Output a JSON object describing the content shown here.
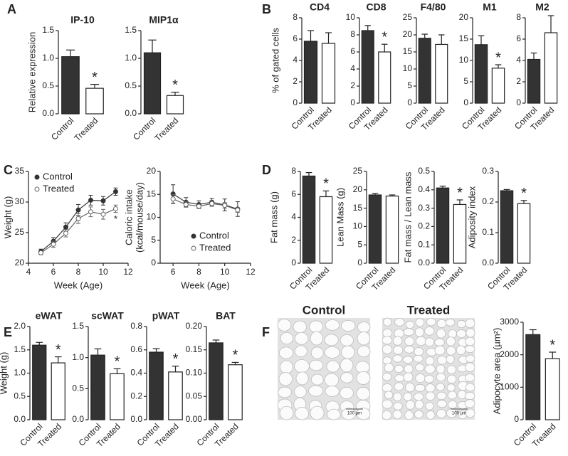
{
  "panel_labels": [
    "A",
    "B",
    "C",
    "D",
    "E",
    "F"
  ],
  "images": [
    {
      "title": "Control",
      "scale_bar": "100 µm"
    },
    {
      "title": "Treated",
      "scale_bar": "100 µm"
    }
  ],
  "chart_data": [
    {
      "type": "bar",
      "title": "IP-10",
      "ylabel": [
        "Relative expression"
      ],
      "categories": [
        "Control",
        "Treated"
      ],
      "values": [
        1.03,
        0.46
      ],
      "errors": [
        0.12,
        0.07
      ],
      "colors": [
        "#333333",
        "#ffffff"
      ],
      "ylim": [
        0,
        1.5
      ],
      "yticks": [
        {
          "value": 0,
          "label": "0.0"
        },
        0.5,
        {
          "value": 1,
          "label": "1.0"
        },
        1.5
      ],
      "annotation": "*"
    },
    {
      "type": "bar",
      "title": "MIP1α",
      "categories": [
        "Control",
        "Treated"
      ],
      "values": [
        1.1,
        0.33
      ],
      "errors": [
        0.23,
        0.06
      ],
      "colors": [
        "#333333",
        "#ffffff"
      ],
      "ylim": [
        0,
        1.5
      ],
      "yticks": [
        {
          "value": 0,
          "label": "0.0"
        },
        0.5,
        {
          "value": 1,
          "label": "1.0"
        },
        1.5
      ],
      "annotation": "*"
    },
    {
      "type": "bar",
      "title": "CD4",
      "ylabel": [
        "% of gated cells"
      ],
      "categories": [
        "Control",
        "Treated"
      ],
      "values": [
        5.8,
        5.6
      ],
      "errors": [
        1.0,
        1.0
      ],
      "colors": [
        "#333333",
        "#ffffff"
      ],
      "ylim": [
        0,
        8
      ],
      "yticks": [
        0,
        2,
        4,
        6,
        8
      ]
    },
    {
      "type": "bar",
      "title": "CD8",
      "categories": [
        "Control",
        "Treated"
      ],
      "values": [
        8.5,
        6.0
      ],
      "errors": [
        0.6,
        0.9
      ],
      "colors": [
        "#333333",
        "#ffffff"
      ],
      "ylim": [
        0,
        10
      ],
      "yticks": [
        0,
        2,
        4,
        6,
        8,
        10
      ],
      "annotation": "*"
    },
    {
      "type": "bar",
      "title": "F4/80",
      "categories": [
        "Control",
        "Treated"
      ],
      "values": [
        19,
        17.2
      ],
      "errors": [
        1.2,
        2.8
      ],
      "colors": [
        "#333333",
        "#ffffff"
      ],
      "ylim": [
        0,
        25
      ],
      "yticks": [
        0,
        5,
        10,
        15,
        20,
        25
      ]
    },
    {
      "type": "bar",
      "title": "M1",
      "categories": [
        "Control",
        "Treated"
      ],
      "values": [
        13.7,
        8.2
      ],
      "errors": [
        2.1,
        0.8
      ],
      "colors": [
        "#333333",
        "#ffffff"
      ],
      "ylim": [
        0,
        20
      ],
      "yticks": [
        0,
        5,
        10,
        15,
        20
      ],
      "annotation": "*"
    },
    {
      "type": "bar",
      "title": "M2",
      "categories": [
        "Control",
        "Treated"
      ],
      "values": [
        4.1,
        6.6
      ],
      "errors": [
        0.6,
        1.6
      ],
      "colors": [
        "#333333",
        "#ffffff"
      ],
      "ylim": [
        0,
        8
      ],
      "yticks": [
        0,
        2,
        4,
        6,
        8
      ]
    },
    {
      "type": "line",
      "ylabel": [
        "Weight (g)"
      ],
      "xlabel": "Week (Age)",
      "x": [
        5,
        6,
        7,
        8,
        9,
        10,
        11
      ],
      "xlim": [
        4,
        12
      ],
      "xticks": [
        4,
        6,
        8,
        10,
        12
      ],
      "ylim": [
        20,
        35
      ],
      "yticks": [
        20,
        25,
        30,
        35
      ],
      "legend": "upper left",
      "annotation": "*",
      "series": [
        {
          "name": "Control",
          "color": "#333333",
          "marker_fill": "#333333",
          "values": [
            21.9,
            23.6,
            25.9,
            28.7,
            30.3,
            30.2,
            31.7
          ],
          "errors": [
            0.4,
            0.6,
            0.7,
            0.9,
            0.8,
            0.7,
            0.6
          ]
        },
        {
          "name": "Treated",
          "color": "#666666",
          "marker_fill": "#ffffff",
          "values": [
            21.7,
            23.1,
            24.9,
            27.3,
            28.4,
            28.0,
            28.9
          ],
          "errors": [
            0.3,
            0.5,
            0.6,
            0.8,
            0.8,
            0.8,
            0.6
          ]
        }
      ]
    },
    {
      "type": "line",
      "ylabel": [
        "Caloric intake",
        "(kcal/mouse/day)"
      ],
      "xlabel": "Week (Age)",
      "x": [
        6,
        7,
        8,
        9,
        10,
        11
      ],
      "xlim": [
        5,
        12
      ],
      "xticks": [
        6,
        8,
        10,
        12
      ],
      "ylim": [
        0,
        20
      ],
      "yticks": [
        0,
        5,
        10,
        15,
        20
      ],
      "legend": "lower right",
      "series": [
        {
          "name": "Control",
          "color": "#333333",
          "marker_fill": "#333333",
          "values": [
            15.1,
            13.3,
            12.8,
            13.3,
            12.7,
            11.8
          ],
          "errors": [
            2.0,
            1.0,
            0.8,
            0.8,
            1.3,
            1.6
          ]
        },
        {
          "name": "Treated",
          "color": "#666666",
          "marker_fill": "#ffffff",
          "values": [
            14.0,
            12.8,
            12.4,
            13.0,
            12.6,
            11.6
          ],
          "errors": [
            1.0,
            0.6,
            0.5,
            0.6,
            0.6,
            0.5
          ]
        }
      ]
    },
    {
      "type": "bar",
      "ylabel": [
        "Fat mass (g)"
      ],
      "categories": [
        "Control",
        "Treated"
      ],
      "values": [
        7.6,
        5.8
      ],
      "errors": [
        0.3,
        0.5
      ],
      "colors": [
        "#333333",
        "#ffffff"
      ],
      "ylim": [
        0,
        8
      ],
      "yticks": [
        0,
        2,
        4,
        6,
        8
      ],
      "annotation": "*"
    },
    {
      "type": "bar",
      "ylabel": [
        "Lean Mass (g)"
      ],
      "categories": [
        "Control",
        "Treated"
      ],
      "values": [
        18.6,
        18.3
      ],
      "errors": [
        0.4,
        0.3
      ],
      "colors": [
        "#333333",
        "#ffffff"
      ],
      "ylim": [
        0,
        25
      ],
      "yticks": [
        0,
        5,
        10,
        15,
        20,
        25
      ]
    },
    {
      "type": "bar",
      "ylabel": [
        "Fat mass / Lean mass"
      ],
      "categories": [
        "Control",
        "Treated"
      ],
      "values": [
        0.41,
        0.32
      ],
      "errors": [
        0.01,
        0.025
      ],
      "colors": [
        "#333333",
        "#ffffff"
      ],
      "ylim": [
        0,
        0.5
      ],
      "yticks": [
        {
          "value": 0,
          "label": "0.0"
        },
        0.1,
        0.2,
        0.3,
        0.4,
        0.5
      ],
      "annotation": "*"
    },
    {
      "type": "bar",
      "ylabel": [
        "Adiposity index"
      ],
      "categories": [
        "Control",
        "Treated"
      ],
      "values": [
        0.237,
        0.195
      ],
      "errors": [
        0.004,
        0.01
      ],
      "colors": [
        "#333333",
        "#ffffff"
      ],
      "ylim": [
        0,
        0.3
      ],
      "yticks": [
        {
          "value": 0,
          "label": "0.0"
        },
        0.1,
        0.2,
        0.3
      ],
      "annotation": "*"
    },
    {
      "type": "bar",
      "title": "eWAT",
      "ylabel": [
        "Weight (g)"
      ],
      "categories": [
        "Control",
        "Treated"
      ],
      "values": [
        1.6,
        1.22
      ],
      "errors": [
        0.06,
        0.13
      ],
      "colors": [
        "#333333",
        "#ffffff"
      ],
      "ylim": [
        0,
        2
      ],
      "yticks": [
        {
          "value": 0,
          "label": "0.0"
        },
        0.5,
        {
          "value": 1,
          "label": "1.0"
        },
        1.5,
        {
          "value": 2,
          "label": "2.0"
        }
      ],
      "annotation": "*"
    },
    {
      "type": "bar",
      "title": "scWAT",
      "categories": [
        "Control",
        "Treated"
      ],
      "values": [
        1.04,
        0.74
      ],
      "errors": [
        0.1,
        0.08
      ],
      "colors": [
        "#333333",
        "#ffffff"
      ],
      "ylim": [
        0,
        1.5
      ],
      "yticks": [
        {
          "value": 0,
          "label": "0.0"
        },
        0.5,
        {
          "value": 1,
          "label": "1.0"
        },
        1.5
      ],
      "annotation": "*"
    },
    {
      "type": "bar",
      "title": "pWAT",
      "categories": [
        "Control",
        "Treated"
      ],
      "values": [
        0.58,
        0.41
      ],
      "errors": [
        0.03,
        0.05
      ],
      "colors": [
        "#333333",
        "#ffffff"
      ],
      "ylim": [
        0,
        0.8
      ],
      "yticks": [
        {
          "value": 0,
          "label": "0.0"
        },
        0.2,
        0.4,
        0.6,
        0.8
      ],
      "annotation": "*"
    },
    {
      "type": "bar",
      "title": "BAT",
      "categories": [
        "Control",
        "Treated"
      ],
      "values": [
        0.165,
        0.118
      ],
      "errors": [
        0.006,
        0.005
      ],
      "colors": [
        "#333333",
        "#ffffff"
      ],
      "ylim": [
        0,
        0.2
      ],
      "yticks": [
        {
          "value": 0,
          "label": "0.00"
        },
        0.05,
        {
          "value": 0.1,
          "label": "0.10"
        },
        0.15,
        {
          "value": 0.2,
          "label": "0.20"
        }
      ],
      "annotation": "*"
    },
    {
      "type": "bar",
      "ylabel": [
        "Adipocyte area (µm²)"
      ],
      "categories": [
        "Control",
        "Treated"
      ],
      "values": [
        2620,
        1880
      ],
      "errors": [
        150,
        200
      ],
      "colors": [
        "#333333",
        "#ffffff"
      ],
      "ylim": [
        0,
        3000
      ],
      "yticks": [
        0,
        1000,
        2000,
        3000
      ],
      "annotation": "*"
    }
  ]
}
